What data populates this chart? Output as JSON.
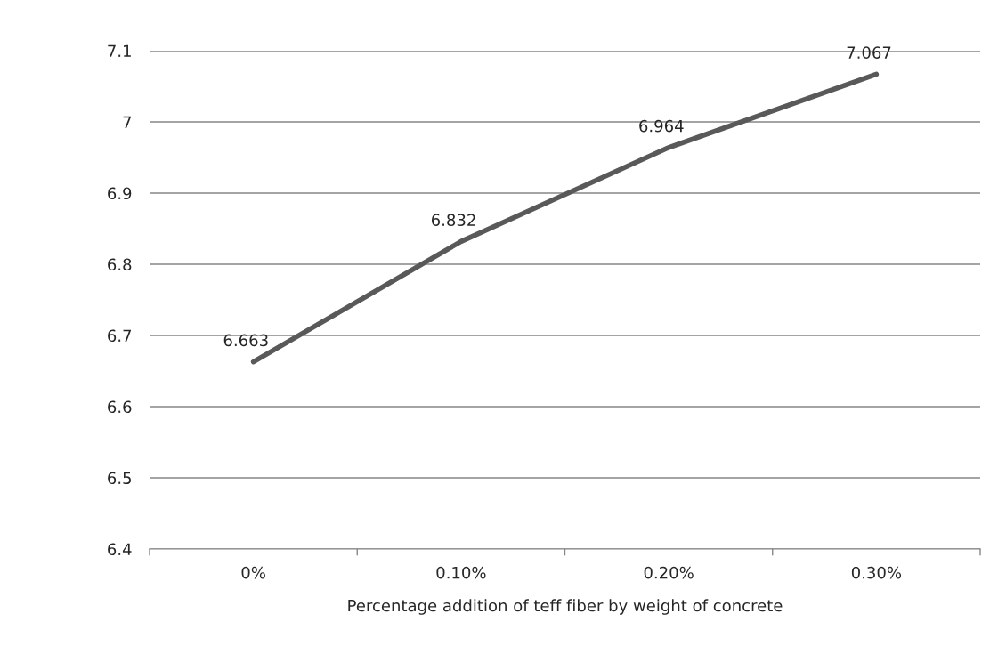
{
  "chart_data": {
    "type": "line",
    "xlabel": "Percentage addition of teff fiber by weight of concrete",
    "categories": [
      "0%",
      "0.10%",
      "0.20%",
      "0.30%"
    ],
    "series": [
      {
        "color": "#595959",
        "values": [
          6.663,
          6.832,
          6.964,
          7.067
        ]
      }
    ],
    "ylim": [
      6.4,
      7.1
    ],
    "yticks": [
      6.4,
      6.5,
      6.6,
      6.7,
      6.8,
      6.9,
      7,
      7.1
    ],
    "grid": "y",
    "data_labels": true,
    "marker": "none",
    "line_style": "solid"
  }
}
